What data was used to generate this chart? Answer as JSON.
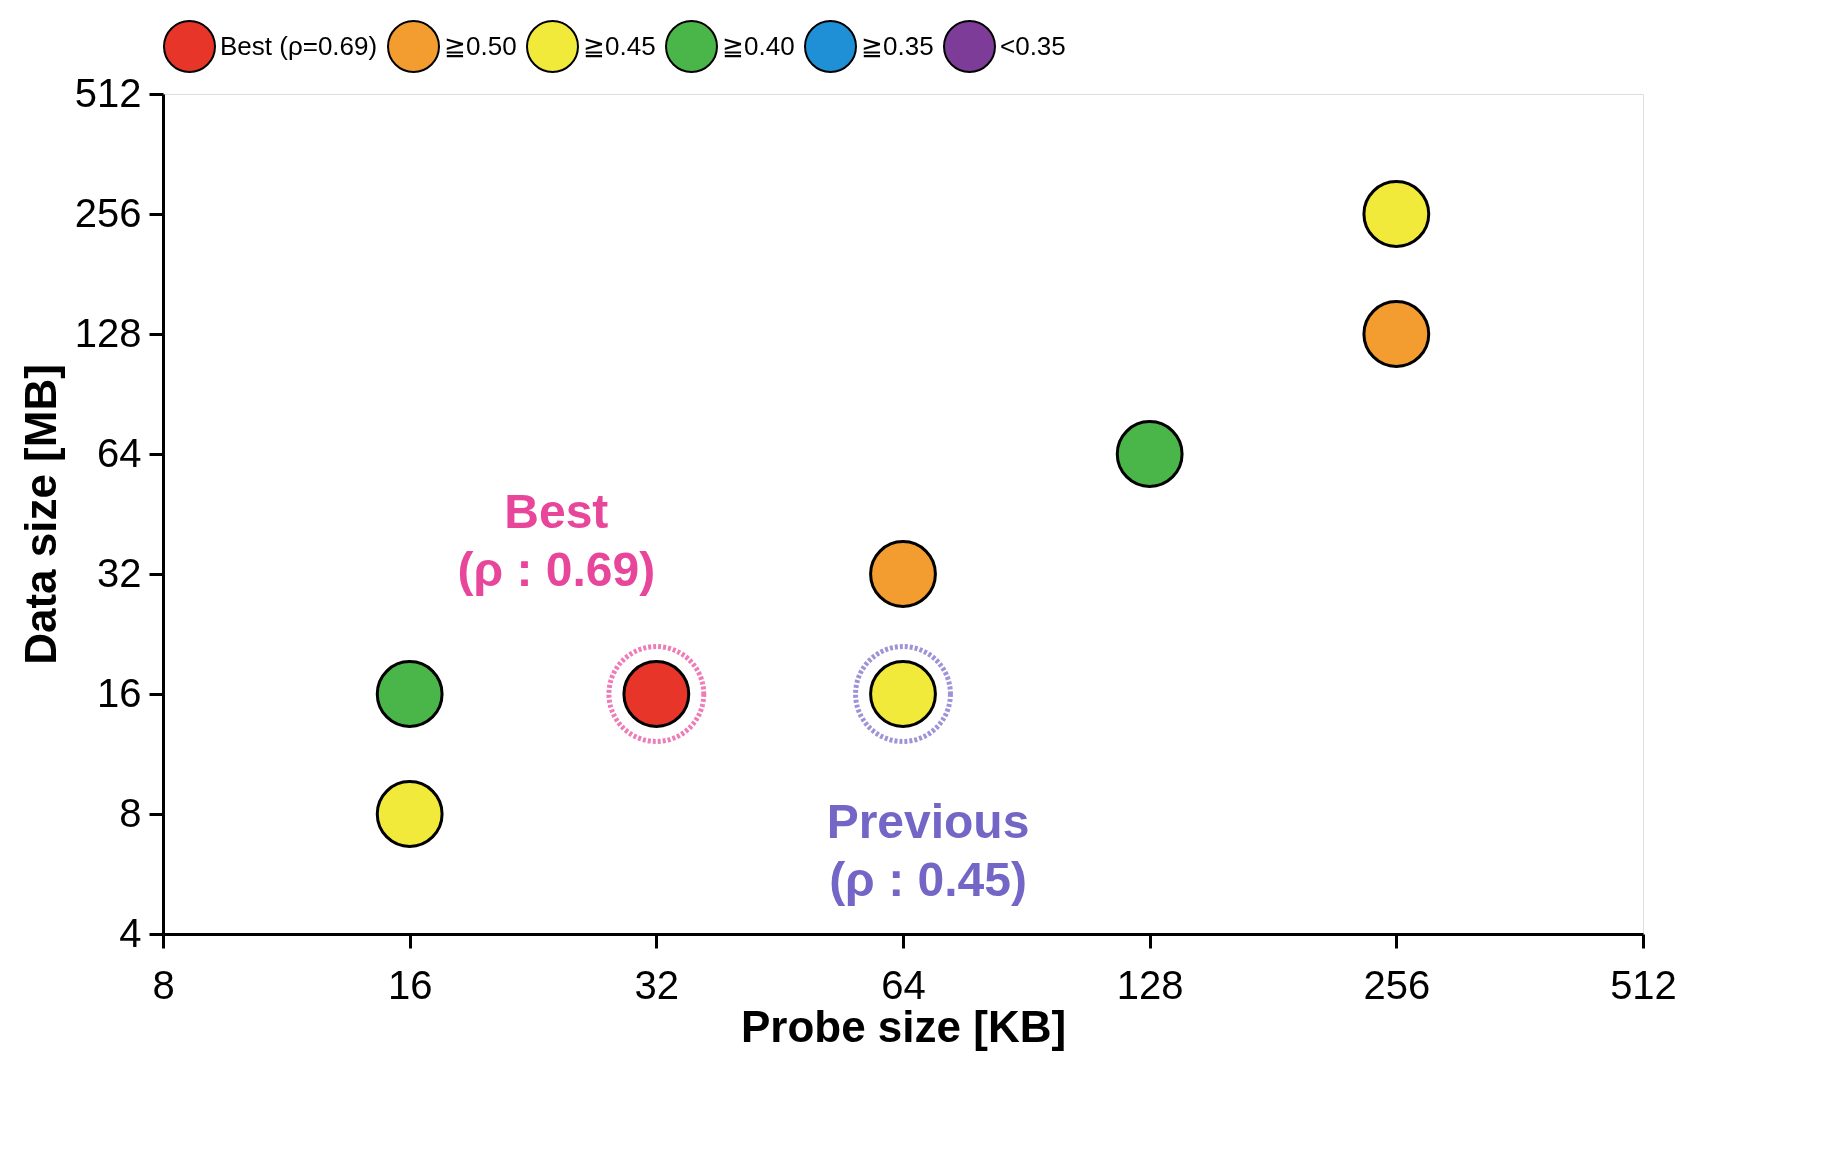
{
  "chart_data": {
    "type": "scatter",
    "xlabel": "Probe size [KB]",
    "ylabel": "Data size [MB]",
    "log": "xy",
    "xlim": [
      8,
      512
    ],
    "ylim": [
      4,
      512
    ],
    "xticks": [
      8,
      16,
      32,
      64,
      128,
      256,
      512
    ],
    "yticks": [
      4,
      8,
      16,
      32,
      64,
      128,
      256,
      512
    ],
    "grid": false,
    "legend": "top",
    "marker": "circle",
    "series": [
      {
        "name": "Best (ρ=0.69)",
        "color": "#e8352a",
        "x": [
          32
        ],
        "values": [
          16
        ]
      },
      {
        "name": "≧0.50",
        "color": "#f39c30",
        "x": [
          64,
          256
        ],
        "values": [
          32,
          128
        ]
      },
      {
        "name": "≧0.45",
        "color": "#f2ea3a",
        "x": [
          16,
          64,
          256
        ],
        "values": [
          8,
          16,
          256
        ]
      },
      {
        "name": "≧0.40",
        "color": "#4ab549",
        "x": [
          16,
          128
        ],
        "values": [
          16,
          64
        ]
      },
      {
        "name": "≧0.35",
        "color": "#1f8fd6"
      },
      {
        "name": "<0.35",
        "color": "#7d3c98"
      }
    ],
    "annotations": [
      {
        "text": "Best\n(ρ : 0.69)",
        "x": 32,
        "y": 16
      },
      {
        "text": "Previous\n(ρ : 0.45)",
        "x": 64,
        "y": 16
      }
    ]
  }
}
